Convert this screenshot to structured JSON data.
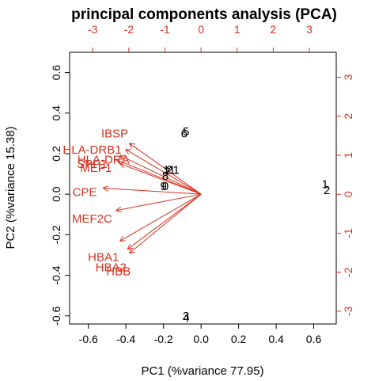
{
  "chart_data": {
    "type": "scatter",
    "title": "principal components analysis (PCA)",
    "xlabel": "PC1 (%variance 77.95)",
    "ylabel": "PC2 (%variance 15.38)",
    "xlim": [
      -0.7,
      0.72
    ],
    "ylim": [
      -0.64,
      0.7
    ],
    "x_ticks": [
      "-0.6",
      "-0.4",
      "-0.2",
      "0.0",
      "0.2",
      "0.4",
      "0.6"
    ],
    "x_tick_values": [
      -0.6,
      -0.4,
      -0.2,
      0.0,
      0.2,
      0.4,
      0.6
    ],
    "y_ticks": [
      "-0.6",
      "-0.4",
      "-0.2",
      "0.0",
      "0.2",
      "0.4",
      "0.6"
    ],
    "y_tick_values": [
      -0.6,
      -0.4,
      -0.2,
      0.0,
      0.2,
      0.4,
      0.6
    ],
    "top_axis_ticks": [
      "-3",
      "-2",
      "-1",
      "0",
      "1",
      "2",
      "3"
    ],
    "top_axis_values": [
      -3,
      -2,
      -1,
      0,
      1,
      2,
      3
    ],
    "right_axis_ticks": [
      "-3",
      "-2",
      "-1",
      "0",
      "1",
      "2",
      "3"
    ],
    "right_axis_values": [
      -3,
      -2,
      -1,
      0,
      1,
      2,
      3
    ],
    "loading_scale": 5.2,
    "colors": {
      "loadings": "#d7301f",
      "points": "#000000"
    },
    "points": [
      {
        "label": "1",
        "x": 0.66,
        "y": 0.05
      },
      {
        "label": "2",
        "x": 0.67,
        "y": 0.02
      },
      {
        "label": "3",
        "x": -0.08,
        "y": -0.6
      },
      {
        "label": "4",
        "x": -0.08,
        "y": -0.61
      },
      {
        "label": "5",
        "x": -0.08,
        "y": 0.31
      },
      {
        "label": "6",
        "x": -0.09,
        "y": 0.3
      },
      {
        "label": "7",
        "x": -0.18,
        "y": 0.11
      },
      {
        "label": "8",
        "x": -0.19,
        "y": 0.09
      },
      {
        "label": "9",
        "x": -0.2,
        "y": 0.04
      },
      {
        "label": "0",
        "x": -0.19,
        "y": 0.04
      },
      {
        "label": "11",
        "x": -0.17,
        "y": 0.12
      },
      {
        "label": "21",
        "x": -0.15,
        "y": 0.12
      }
    ],
    "loadings": [
      {
        "label": "IBSP",
        "x": -0.38,
        "y": 0.25,
        "lx": -0.46,
        "ly": 0.3
      },
      {
        "label": "HLA-DRB1",
        "x": -0.4,
        "y": 0.22,
        "lx": -0.58,
        "ly": 0.22
      },
      {
        "label": "HLA-DRA",
        "x": -0.43,
        "y": 0.19,
        "lx": -0.52,
        "ly": 0.17
      },
      {
        "label": "SPP1",
        "x": -0.45,
        "y": 0.17,
        "lx": -0.58,
        "ly": 0.15
      },
      {
        "label": "MEF1",
        "x": -0.43,
        "y": 0.15,
        "lx": -0.56,
        "ly": 0.13
      },
      {
        "label": "CPE",
        "x": -0.52,
        "y": 0.03,
        "lx": -0.62,
        "ly": 0.01
      },
      {
        "label": "MEF2C",
        "x": -0.45,
        "y": -0.08,
        "lx": -0.58,
        "ly": -0.12
      },
      {
        "label": "HBA1",
        "x": -0.43,
        "y": -0.23,
        "lx": -0.52,
        "ly": -0.31
      },
      {
        "label": "HBA2",
        "x": -0.39,
        "y": -0.27,
        "lx": -0.48,
        "ly": -0.36
      },
      {
        "label": "HBB",
        "x": -0.38,
        "y": -0.29,
        "lx": -0.44,
        "ly": -0.38
      }
    ]
  }
}
